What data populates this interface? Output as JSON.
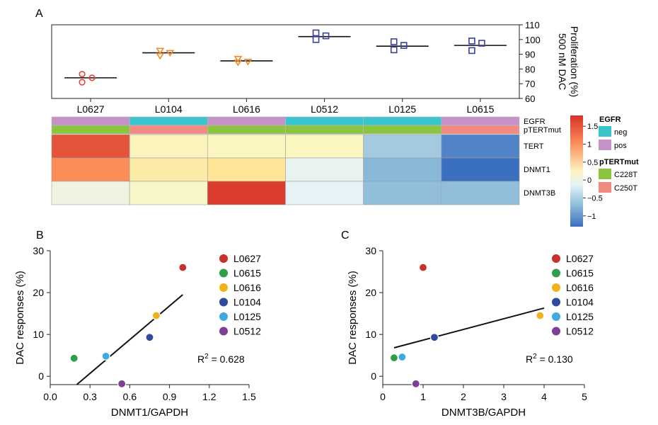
{
  "panel_labels": {
    "a": "A",
    "b": "B",
    "c": "C"
  },
  "chart_data": [
    {
      "id": "A",
      "type": "scatter",
      "title": "",
      "ylabel_lines": [
        "500 nM DAC",
        "Proliferation (%)"
      ],
      "ylim": [
        60,
        110
      ],
      "yticks": [
        60,
        70,
        80,
        90,
        100,
        110
      ],
      "categories": [
        "L0627",
        "L0104",
        "L0616",
        "L0512",
        "L0125",
        "L0615"
      ],
      "marker_colors": [
        "#e8413a",
        "#ef8a2b",
        "#ef8a2b",
        "#3b3fa0",
        "#3b3fa0",
        "#3b3fa0"
      ],
      "marker_shapes": [
        "circle",
        "triangle",
        "triangle",
        "square",
        "square",
        "square"
      ],
      "replicates": [
        [
          76.5,
          74.0,
          71.0
        ],
        [
          92.5,
          91.0,
          89.0
        ],
        [
          87.0,
          85.0,
          84.5
        ],
        [
          104.5,
          102.5,
          100.0
        ],
        [
          98.5,
          96.0,
          93.0
        ],
        [
          99.0,
          97.5,
          92.5
        ]
      ],
      "means": [
        74,
        91,
        85.5,
        102,
        95.5,
        96
      ]
    },
    {
      "id": "A-heatmap",
      "type": "heatmap",
      "columns": [
        "L0627",
        "L0104",
        "L0616",
        "L0512",
        "L0125",
        "L0615"
      ],
      "annotation_rows": [
        {
          "label": "EGFR",
          "values": [
            "pos",
            "neg",
            "pos",
            "neg",
            "neg",
            "pos"
          ]
        },
        {
          "label": "pTERTmut",
          "values": [
            "C228T",
            "C250T",
            "C228T",
            "C228T",
            "C228T",
            "C250T"
          ]
        }
      ],
      "rows": [
        "TERT",
        "DNMT1",
        "DNMT3B"
      ],
      "values": [
        [
          1.5,
          0.15,
          0.1,
          0.1,
          -0.6,
          -1.15
        ],
        [
          1.0,
          0.35,
          0.5,
          -0.2,
          -0.75,
          -1.3
        ],
        [
          -0.1,
          0.05,
          1.7,
          -0.25,
          -0.7,
          -0.7
        ]
      ],
      "colorbar_range": [
        -1.3,
        1.8
      ],
      "colorbar_ticks": [
        "1.5",
        "1",
        "0.5",
        "0",
        "−0.5",
        "−1"
      ],
      "colorbar_tick_values": [
        1.5,
        1,
        0.5,
        0,
        -0.5,
        -1
      ],
      "legend": {
        "EGFR": {
          "title": "EGFR",
          "entries": [
            {
              "label": "neg",
              "color": "#38c5cb"
            },
            {
              "label": "pos",
              "color": "#c592c8"
            }
          ]
        },
        "pTERTmut": {
          "title": "pTERTmut",
          "entries": [
            {
              "label": "C228T",
              "color": "#8bc53f"
            },
            {
              "label": "C250T",
              "color": "#f28a82"
            }
          ]
        }
      }
    },
    {
      "id": "B",
      "type": "scatter",
      "xlabel": "DNMT1/GAPDH",
      "ylabel": "DAC responses (%)",
      "xlim": [
        0,
        1.5
      ],
      "ylim": [
        -2,
        30
      ],
      "xticks": [
        "0.0",
        "0.3",
        "0.6",
        "0.9",
        "1.2",
        "1.5"
      ],
      "xtick_values": [
        0,
        0.3,
        0.6,
        0.9,
        1.2,
        1.5
      ],
      "yticks": [
        "0",
        "10",
        "20",
        "30"
      ],
      "ytick_values": [
        0,
        10,
        20,
        30
      ],
      "points": [
        {
          "label": "L0627",
          "x": 1.0,
          "y": 26,
          "color": "#c8302d"
        },
        {
          "label": "L0615",
          "x": 0.18,
          "y": 4.3,
          "color": "#2e9e47"
        },
        {
          "label": "L0616",
          "x": 0.8,
          "y": 14.5,
          "color": "#f2b21c"
        },
        {
          "label": "L0104",
          "x": 0.75,
          "y": 9.3,
          "color": "#2f4a9c"
        },
        {
          "label": "L0125",
          "x": 0.42,
          "y": 4.8,
          "color": "#3fa9e1"
        },
        {
          "label": "L0512",
          "x": 0.54,
          "y": -1.8,
          "color": "#7d3f98"
        }
      ],
      "fit": [
        [
          0.2,
          -2
        ],
        [
          1.0,
          19.5
        ]
      ],
      "annotation": {
        "prefix": "R",
        "superscript": "2",
        "suffix": " = 0.628"
      }
    },
    {
      "id": "C",
      "type": "scatter",
      "xlabel": "DNMT3B/GAPDH",
      "ylabel": "DAC responses (%)",
      "xlim": [
        0,
        5
      ],
      "ylim": [
        -2,
        30
      ],
      "xticks": [
        "0",
        "1",
        "2",
        "3",
        "4",
        "5"
      ],
      "xtick_values": [
        0,
        1,
        2,
        3,
        4,
        5
      ],
      "yticks": [
        "0",
        "10",
        "20",
        "30"
      ],
      "ytick_values": [
        0,
        10,
        20,
        30
      ],
      "points": [
        {
          "label": "L0627",
          "x": 1.0,
          "y": 26,
          "color": "#c8302d"
        },
        {
          "label": "L0615",
          "x": 0.28,
          "y": 4.4,
          "color": "#2e9e47"
        },
        {
          "label": "L0616",
          "x": 3.9,
          "y": 14.5,
          "color": "#f2b21c"
        },
        {
          "label": "L0104",
          "x": 1.28,
          "y": 9.3,
          "color": "#2f4a9c"
        },
        {
          "label": "L0125",
          "x": 0.48,
          "y": 4.6,
          "color": "#3fa9e1"
        },
        {
          "label": "L0512",
          "x": 0.82,
          "y": -1.8,
          "color": "#7d3f98"
        }
      ],
      "fit": [
        [
          0.28,
          6.8
        ],
        [
          4.0,
          16.3
        ]
      ],
      "annotation": {
        "prefix": "R",
        "superscript": "2",
        "suffix": " = 0.130"
      }
    }
  ]
}
